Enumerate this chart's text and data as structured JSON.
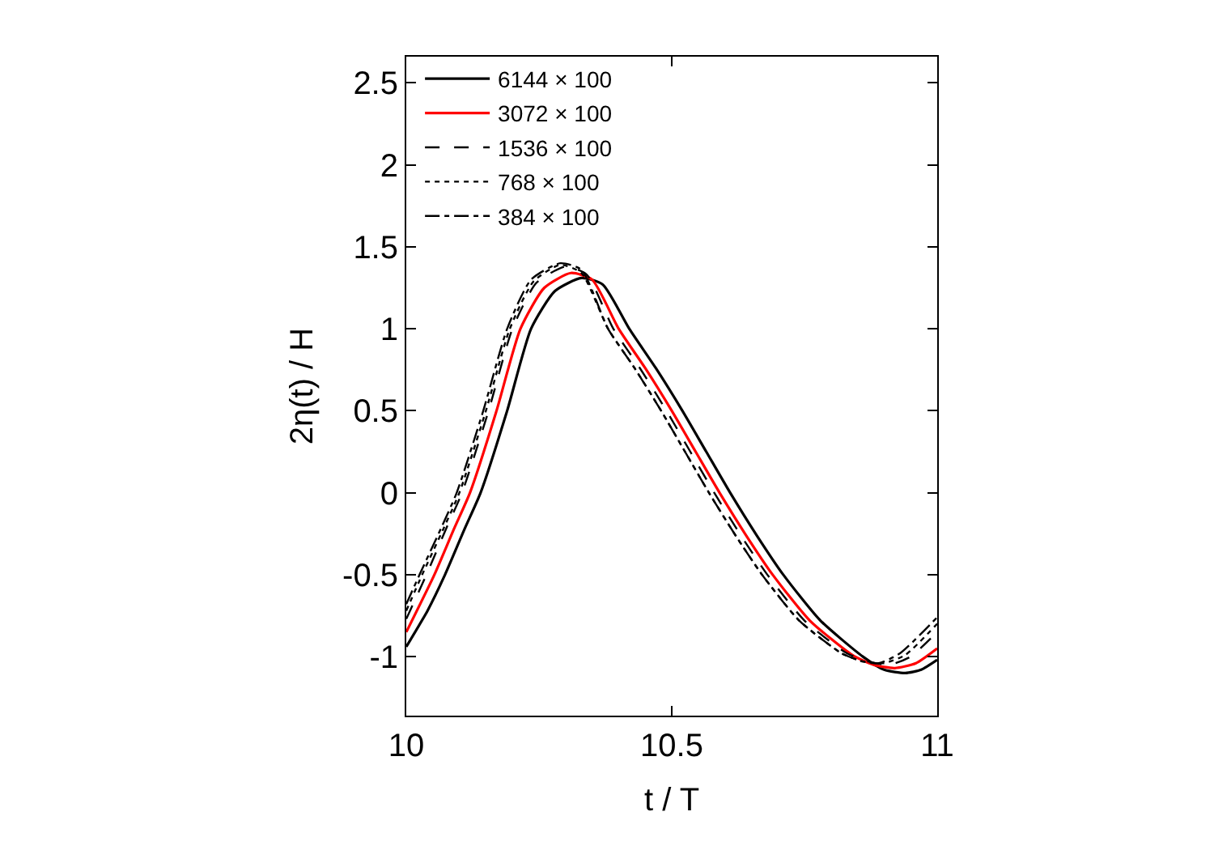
{
  "chart_data": {
    "type": "line",
    "xlabel": "t / T",
    "ylabel": "2η(t) / H",
    "xlim": [
      10,
      11
    ],
    "xticks": [
      10,
      10.5,
      11
    ],
    "ylim": [
      -1.36,
      2.66
    ],
    "yticks": [
      -1,
      -0.5,
      0,
      0.5,
      1,
      1.5,
      2,
      2.5
    ],
    "legend": "top left",
    "marker": "none",
    "series": [
      {
        "name": "6144 × 100",
        "color": "#000000",
        "line_style": "solid",
        "x": [
          10,
          10.04,
          10.073,
          10.11,
          10.14,
          10.19,
          10.235,
          10.28,
          10.33,
          10.37,
          10.42,
          10.47,
          10.52,
          10.565,
          10.61,
          10.66,
          10.71,
          10.78,
          10.86,
          10.9,
          10.94,
          10.97,
          11
        ],
        "values": [
          -0.94,
          -0.72,
          -0.5,
          -0.22,
          0,
          0.5,
          1.0,
          1.23,
          1.31,
          1.27,
          1.0,
          0.76,
          0.5,
          0.25,
          0,
          -0.26,
          -0.5,
          -0.78,
          -1.0,
          -1.08,
          -1.1,
          -1.08,
          -1.02
        ]
      },
      {
        "name": "3072 × 100",
        "color": "#ff0000",
        "line_style": "solid",
        "x": [
          10,
          10.053,
          10.09,
          10.12,
          10.17,
          10.215,
          10.26,
          10.31,
          10.35,
          10.4,
          10.45,
          10.5,
          10.545,
          10.59,
          10.64,
          10.69,
          10.76,
          10.84,
          10.88,
          10.92,
          10.96,
          11
        ],
        "values": [
          -0.85,
          -0.5,
          -0.22,
          0,
          0.5,
          1.0,
          1.25,
          1.34,
          1.3,
          1.0,
          0.76,
          0.5,
          0.25,
          0,
          -0.26,
          -0.5,
          -0.78,
          -0.99,
          -1.05,
          -1.07,
          -1.04,
          -0.95
        ]
      },
      {
        "name": "1536 × 100",
        "color": "#000000",
        "line_style": "dashed",
        "x": [
          10,
          10.038,
          10.075,
          10.105,
          10.155,
          10.2,
          10.245,
          10.3,
          10.34,
          10.39,
          10.44,
          10.49,
          10.535,
          10.58,
          10.63,
          10.68,
          10.75,
          10.83,
          10.87,
          10.91,
          10.95,
          11
        ],
        "values": [
          -0.77,
          -0.5,
          -0.22,
          0,
          0.5,
          1.0,
          1.28,
          1.38,
          1.33,
          1.0,
          0.76,
          0.5,
          0.25,
          0,
          -0.26,
          -0.5,
          -0.78,
          -0.98,
          -1.03,
          -1.05,
          -1.0,
          -0.85
        ]
      },
      {
        "name": "768 × 100",
        "color": "#000000",
        "line_style": "dotted",
        "x": [
          10,
          10.03,
          10.07,
          10.1,
          10.15,
          10.195,
          10.24,
          10.29,
          10.33,
          10.38,
          10.43,
          10.48,
          10.525,
          10.57,
          10.62,
          10.67,
          10.74,
          10.82,
          10.86,
          10.9,
          10.94,
          11
        ],
        "values": [
          -0.72,
          -0.5,
          -0.22,
          0,
          0.5,
          1.0,
          1.29,
          1.39,
          1.34,
          1.0,
          0.76,
          0.5,
          0.25,
          0,
          -0.26,
          -0.5,
          -0.78,
          -0.98,
          -1.03,
          -1.04,
          -0.99,
          -0.8
        ]
      },
      {
        "name": "384 × 100",
        "color": "#000000",
        "line_style": "dashdot",
        "x": [
          10,
          10.025,
          10.065,
          10.095,
          10.145,
          10.19,
          10.235,
          10.29,
          10.33,
          10.38,
          10.43,
          10.48,
          10.525,
          10.57,
          10.62,
          10.67,
          10.74,
          10.82,
          10.86,
          10.89,
          10.93,
          11
        ],
        "values": [
          -0.68,
          -0.5,
          -0.22,
          0,
          0.5,
          1.0,
          1.3,
          1.4,
          1.36,
          1.0,
          0.76,
          0.5,
          0.25,
          0,
          -0.26,
          -0.5,
          -0.78,
          -0.98,
          -1.03,
          -1.04,
          -0.98,
          -0.76
        ]
      }
    ]
  }
}
